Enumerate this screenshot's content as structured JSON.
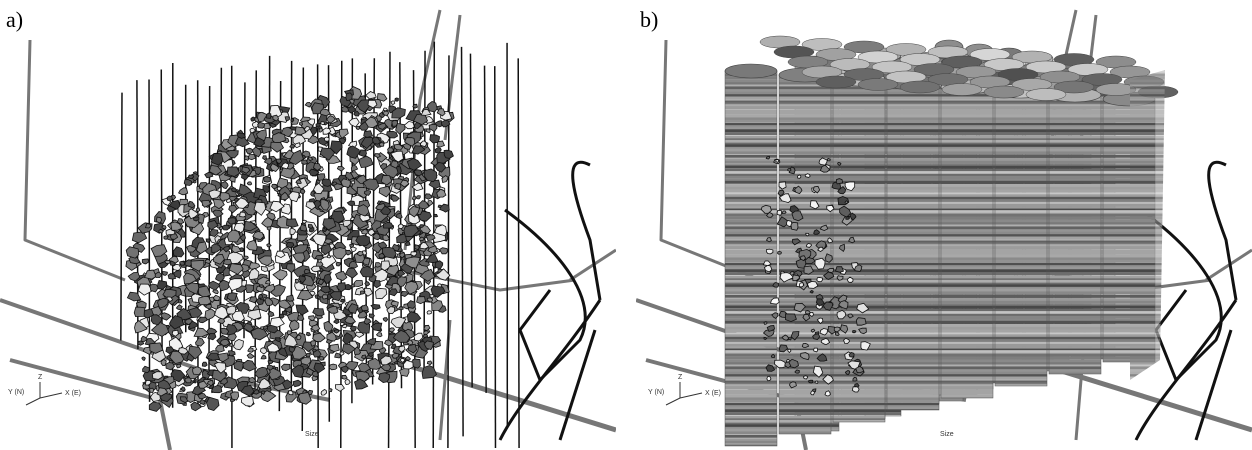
{
  "panels": [
    {
      "label": "a)",
      "axes": {
        "y": "Y (N)",
        "z": "Z",
        "x": "X (E)"
      },
      "scale_label": "Size"
    },
    {
      "label": "b)",
      "axes": {
        "y": "Y (N)",
        "z": "Z",
        "x": "X (E)"
      },
      "scale_label": "Size"
    }
  ]
}
